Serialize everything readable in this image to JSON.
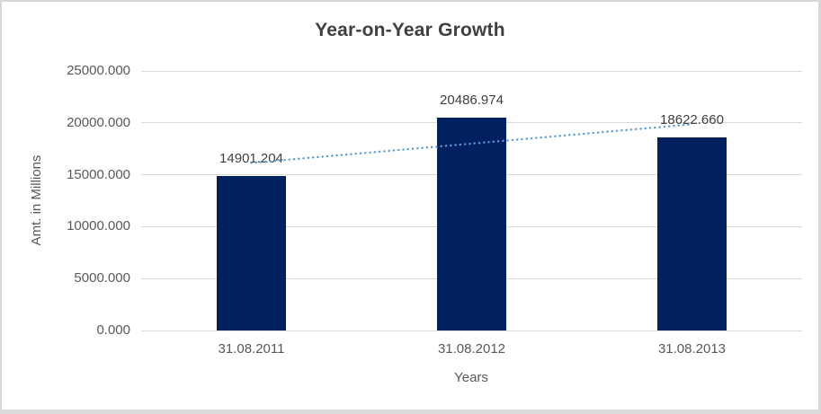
{
  "window": {
    "frame_border_color": "#D7D7D7",
    "background_color": "#FFFFFF"
  },
  "chart_data": {
    "type": "bar",
    "title": "Year-on-Year Growth",
    "xlabel": "Years",
    "ylabel": "Amt. in Millions",
    "categories": [
      "31.08.2011",
      "31.08.2012",
      "31.08.2013"
    ],
    "values": [
      14901.204,
      20486.974,
      18622.66
    ],
    "data_labels": [
      "14901.204",
      "20486.974",
      "18622.660"
    ],
    "ylim": [
      0,
      25000
    ],
    "ytick_step": 5000,
    "ytick_labels": [
      "0.000",
      "5000.000",
      "10000.000",
      "15000.000",
      "20000.000",
      "25000.000"
    ],
    "grid": true,
    "legend": "none",
    "bar_color": "#002060",
    "gridline_color": "#D9D9D9",
    "title_color": "#404040",
    "data_label_color": "#404040",
    "tick_label_color": "#595959",
    "trendline": {
      "type": "linear",
      "style": "dotted",
      "color": "#5B9BD5"
    }
  }
}
